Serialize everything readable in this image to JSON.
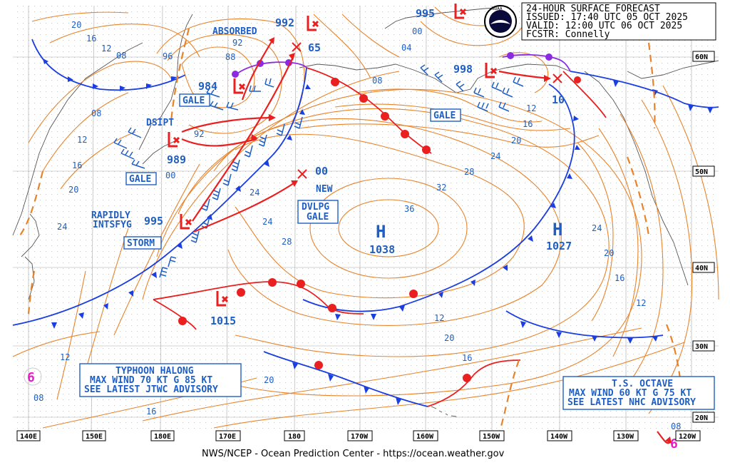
{
  "header": {
    "line1": "24-HOUR SURFACE FORECAST",
    "line2": "ISSUED: 17:40 UTC 05 OCT 2025",
    "line3": "VALID:  12:00 UTC 06 OCT 2025",
    "line4": "FCSTR:  Connelly"
  },
  "logo_text": "NOAA",
  "footer": "NWS/NCEP - Ocean Prediction Center - https://ocean.weather.gov",
  "axis": {
    "lon": [
      "140E",
      "150E",
      "180E",
      "170E",
      "180",
      "170W",
      "160W",
      "150W",
      "140W",
      "130W",
      "120W"
    ],
    "lat": [
      "60N",
      "50N",
      "40N",
      "30N",
      "20N"
    ]
  },
  "centers": [
    {
      "label": "H",
      "pressure": "1038"
    },
    {
      "label": "H",
      "pressure": "1027"
    }
  ],
  "lows": [
    "984",
    "989",
    "995",
    "1015",
    "998",
    "992",
    "995"
  ],
  "forecast_pressures": [
    "65",
    "00",
    "10"
  ],
  "tags": {
    "gale1": "GALE",
    "gale2": "GALE",
    "gale3": "GALE",
    "storm": "STORM",
    "dvlpg1": "DVLPG",
    "dvlpg2": "GALE",
    "absorbed": "ABSORBED",
    "dsipt": "DSIPT",
    "rapidly1": "RAPIDLY",
    "rapidly2": "INTSFYG",
    "new": "NEW"
  },
  "advisories": [
    {
      "line1": "TYPHOON HALONG",
      "line2": "MAX WIND 70 KT G 85 KT",
      "line3": "SEE LATEST JTWC ADVISORY"
    },
    {
      "line1": "T.S. OCTAVE",
      "line2": "MAX WIND 60 KT G 75 KT",
      "line3": "SEE LATEST NHC ADVISORY"
    }
  ],
  "isobar_labels": [
    "20",
    "16",
    "12",
    "08",
    "96",
    "88",
    "92",
    "04",
    "00",
    "08",
    "12",
    "16",
    "20",
    "24",
    "28",
    "32",
    "36",
    "24",
    "28",
    "20",
    "16",
    "12",
    "24",
    "20",
    "16",
    "12",
    "08",
    "16",
    "12",
    "08",
    "20",
    "24",
    "16",
    "20",
    "08",
    "12",
    "92",
    "00",
    "24"
  ],
  "colors": {
    "isobar": "#e8832a",
    "cold_front": "#1a3ee0",
    "warm_front": "#ea1f1f",
    "occluded": "#8a2be2",
    "text": "#1f5fc4"
  }
}
